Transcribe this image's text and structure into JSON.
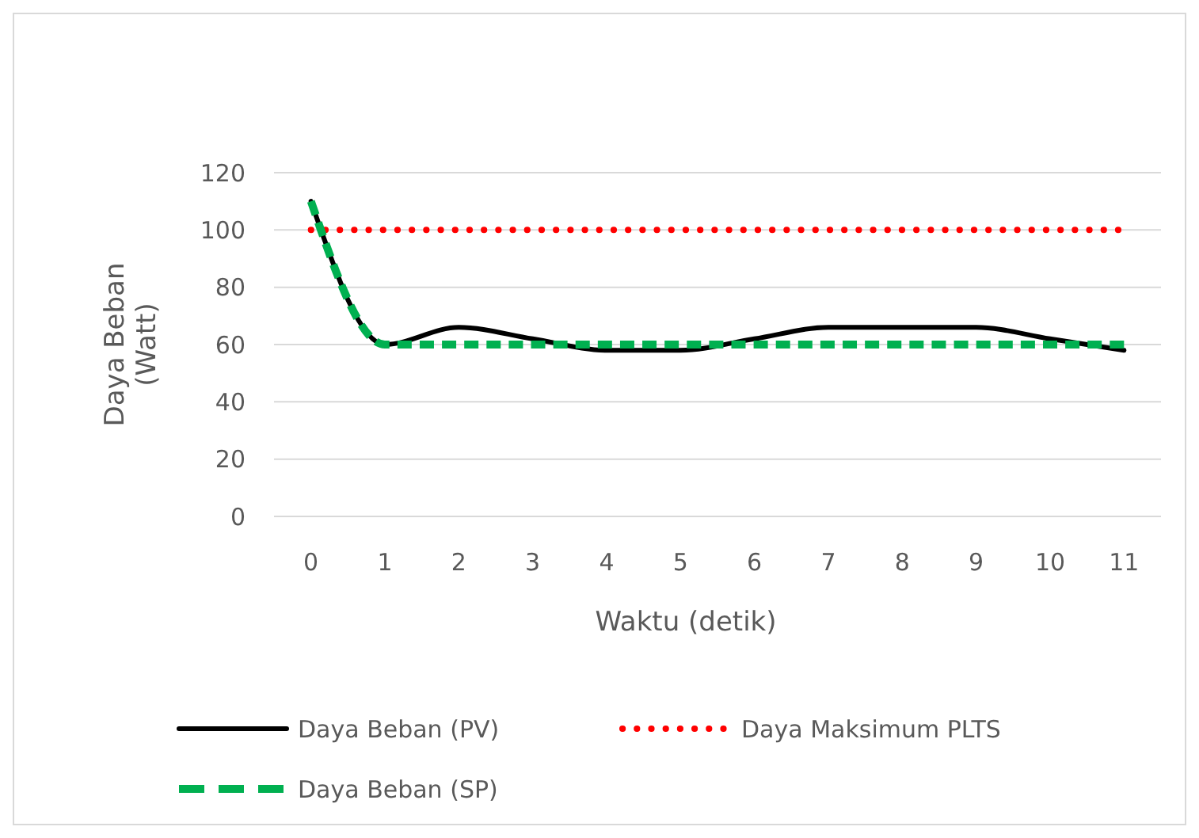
{
  "chart_data": {
    "type": "line",
    "xlabel": "Waktu (detik)",
    "ylabel": "Daya Beban\n(Watt)",
    "categories": [
      "0",
      "1",
      "2",
      "3",
      "4",
      "5",
      "6",
      "7",
      "8",
      "9",
      "10",
      "11"
    ],
    "ylim": [
      0,
      120
    ],
    "yticks": [
      0,
      20,
      40,
      60,
      80,
      100,
      120
    ],
    "grid": "y",
    "legend": "bottom",
    "series": [
      {
        "name": "Daya Beban (PV)",
        "color": "#000000",
        "line_style": "solid",
        "values": [
          110,
          60,
          66,
          62,
          58,
          58,
          62,
          66,
          66,
          66,
          62,
          58
        ]
      },
      {
        "name": "Daya Maksimum PLTS",
        "color": "#ff0000",
        "line_style": "dotted",
        "values": [
          100,
          100,
          100,
          100,
          100,
          100,
          100,
          100,
          100,
          100,
          100,
          100
        ]
      },
      {
        "name": "Daya Beban (SP)",
        "color": "#00b050",
        "line_style": "dashed",
        "values": [
          110,
          60,
          60,
          60,
          60,
          60,
          60,
          60,
          60,
          60,
          60,
          60
        ]
      }
    ]
  }
}
